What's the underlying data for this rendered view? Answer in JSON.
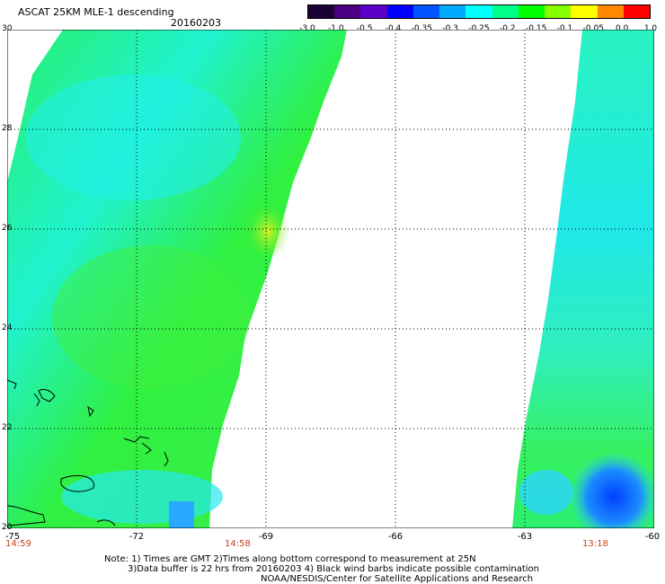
{
  "title": "ASCAT 25KM MLE-1 descending",
  "date": "20160203",
  "colorbar": {
    "labels": [
      "-3.0",
      "-1.0",
      "-0.5",
      "-0.4",
      "-0.35",
      "-0.3",
      "-0.25",
      "-0.2",
      "-0.15",
      "-0.1",
      "-0.05",
      "0.0",
      "1.0"
    ],
    "colors": [
      "#1a0033",
      "#4b0082",
      "#5a00c8",
      "#0000ff",
      "#0055ff",
      "#00aaff",
      "#00ffff",
      "#00ff88",
      "#00ff00",
      "#88ff00",
      "#ffff00",
      "#ff8800",
      "#ff0000"
    ]
  },
  "axes": {
    "y_ticks": [
      "30",
      "28",
      "26",
      "24",
      "22",
      "20"
    ],
    "x_ticks": [
      "-75",
      "-72",
      "-69",
      "-66",
      "-63",
      "-60"
    ]
  },
  "times": [
    "14:59",
    "14:58",
    "13:18"
  ],
  "notes": {
    "line1": "Note: 1) Times are GMT 2)Times along bottom correspond to measurement at 25N",
    "line2": "3)Data buffer is 22 hrs from 20160203 4) Black wind barbs indicate possible contamination",
    "line3": "NOAA/NESDIS/Center for Satellite Applications and Research"
  }
}
